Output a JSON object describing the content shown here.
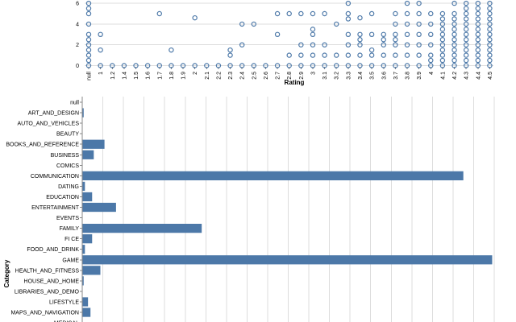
{
  "chart_data": [
    {
      "type": "scatter",
      "xlabel": "Rating",
      "ylabel": "",
      "x_categories": [
        "null",
        "1",
        "1.2",
        "1.4",
        "1.5",
        "1.6",
        "1.7",
        "1.8",
        "1.9",
        "2",
        "2.1",
        "2.2",
        "2.3",
        "2.4",
        "2.5",
        "2.6",
        "2.7",
        "2.8",
        "2.9",
        "3",
        "3.1",
        "3.2",
        "3.3",
        "3.4",
        "3.5",
        "3.6",
        "3.7",
        "3.8",
        "3.9",
        "4",
        "4.1",
        "4.2",
        "4.3",
        "4.4",
        "4.5"
      ],
      "y_ticks": [
        0,
        2,
        4,
        6
      ],
      "ylim": [
        0,
        6.5
      ],
      "grid": true,
      "points": [
        {
          "x": "null",
          "y": [
            0,
            0.5,
            1,
            1.5,
            2,
            2.5,
            3,
            4,
            5,
            5.5,
            6
          ]
        },
        {
          "x": "1",
          "y": [
            0,
            1.5,
            3
          ]
        },
        {
          "x": "1.2",
          "y": [
            0
          ]
        },
        {
          "x": "1.4",
          "y": [
            0
          ]
        },
        {
          "x": "1.5",
          "y": [
            0
          ]
        },
        {
          "x": "1.6",
          "y": [
            0
          ]
        },
        {
          "x": "1.7",
          "y": [
            0,
            5
          ]
        },
        {
          "x": "1.8",
          "y": [
            0,
            1.5
          ]
        },
        {
          "x": "1.9",
          "y": [
            0
          ]
        },
        {
          "x": "2",
          "y": [
            0,
            4.6
          ]
        },
        {
          "x": "2.1",
          "y": [
            0
          ]
        },
        {
          "x": "2.2",
          "y": [
            0
          ]
        },
        {
          "x": "2.3",
          "y": [
            0,
            1,
            1.5
          ]
        },
        {
          "x": "2.4",
          "y": [
            0,
            2,
            4
          ]
        },
        {
          "x": "2.5",
          "y": [
            0,
            4
          ]
        },
        {
          "x": "2.6",
          "y": [
            0
          ]
        },
        {
          "x": "2.7",
          "y": [
            0,
            3,
            5
          ]
        },
        {
          "x": "2.8",
          "y": [
            0,
            1,
            5
          ]
        },
        {
          "x": "2.9",
          "y": [
            0,
            1,
            2,
            5
          ]
        },
        {
          "x": "3",
          "y": [
            0,
            1,
            2,
            3,
            3.5,
            5
          ]
        },
        {
          "x": "3.1",
          "y": [
            0,
            1,
            2,
            5
          ]
        },
        {
          "x": "3.2",
          "y": [
            0,
            1,
            4
          ]
        },
        {
          "x": "3.3",
          "y": [
            0,
            1,
            2,
            3,
            4.5,
            5,
            6
          ]
        },
        {
          "x": "3.4",
          "y": [
            0,
            1,
            2,
            2.5,
            3,
            4.6
          ]
        },
        {
          "x": "3.5",
          "y": [
            0,
            1,
            1.5,
            3,
            5
          ]
        },
        {
          "x": "3.6",
          "y": [
            0,
            1,
            2,
            2.5,
            3
          ]
        },
        {
          "x": "3.7",
          "y": [
            0,
            1,
            2,
            2.5,
            3,
            4,
            5
          ]
        },
        {
          "x": "3.8",
          "y": [
            0,
            1,
            2,
            3,
            4,
            5,
            6
          ]
        },
        {
          "x": "3.9",
          "y": [
            0,
            1,
            2,
            3,
            4,
            5,
            6
          ]
        },
        {
          "x": "4",
          "y": [
            0,
            0.5,
            1,
            2,
            3,
            4,
            5
          ]
        },
        {
          "x": "4.1",
          "y": [
            0,
            0.5,
            1,
            1.5,
            2,
            2.5,
            3,
            3.5,
            4,
            4.5,
            5
          ]
        },
        {
          "x": "4.2",
          "y": [
            0,
            0.5,
            1,
            1.5,
            2,
            2.5,
            3,
            3.5,
            4,
            4.5,
            5,
            6
          ]
        },
        {
          "x": "4.3",
          "y": [
            0,
            0.5,
            1,
            1.5,
            2,
            2.5,
            3,
            3.5,
            4,
            4.5,
            5,
            5.5,
            6
          ]
        },
        {
          "x": "4.4",
          "y": [
            0,
            0.5,
            1,
            1.5,
            2,
            2.5,
            3,
            3.5,
            4,
            4.5,
            5,
            5.5,
            6
          ]
        },
        {
          "x": "4.5",
          "y": [
            0,
            0.5,
            1,
            1.5,
            2,
            2.5,
            3,
            3.5,
            4,
            4.5,
            5,
            5.5,
            6
          ]
        }
      ]
    },
    {
      "type": "bar",
      "orientation": "horizontal",
      "ylabel": "Category",
      "xlabel": "",
      "xlim": [
        0,
        200
      ],
      "grid": true,
      "categories": [
        "null",
        "ART_AND_DESIGN",
        "AUTO_AND_VEHICLES",
        "BEAUTY",
        "BOOKS_AND_REFERENCE",
        "BUSINESS",
        "COMICS",
        "COMMUNICATION",
        "DATING",
        "EDUCATION",
        "ENTERTAINMENT",
        "EVENTS",
        "FAMILY",
        "FI  CE",
        "FOOD_AND_DRINK",
        "GAME",
        "HEALTH_AND_FITNESS",
        "HOUSE_AND_HOME",
        "LIBRARIES_AND_DEMO",
        "LIFESTYLE",
        "MAPS_AND_NAVIGATION",
        "MEDICAL"
      ],
      "values": [
        0,
        0.7,
        0,
        0,
        10.8,
        5.6,
        0,
        185,
        1.3,
        4.8,
        16.4,
        0,
        58,
        4.8,
        1.3,
        199,
        8.8,
        0.7,
        0,
        2.8,
        4,
        0
      ]
    }
  ]
}
